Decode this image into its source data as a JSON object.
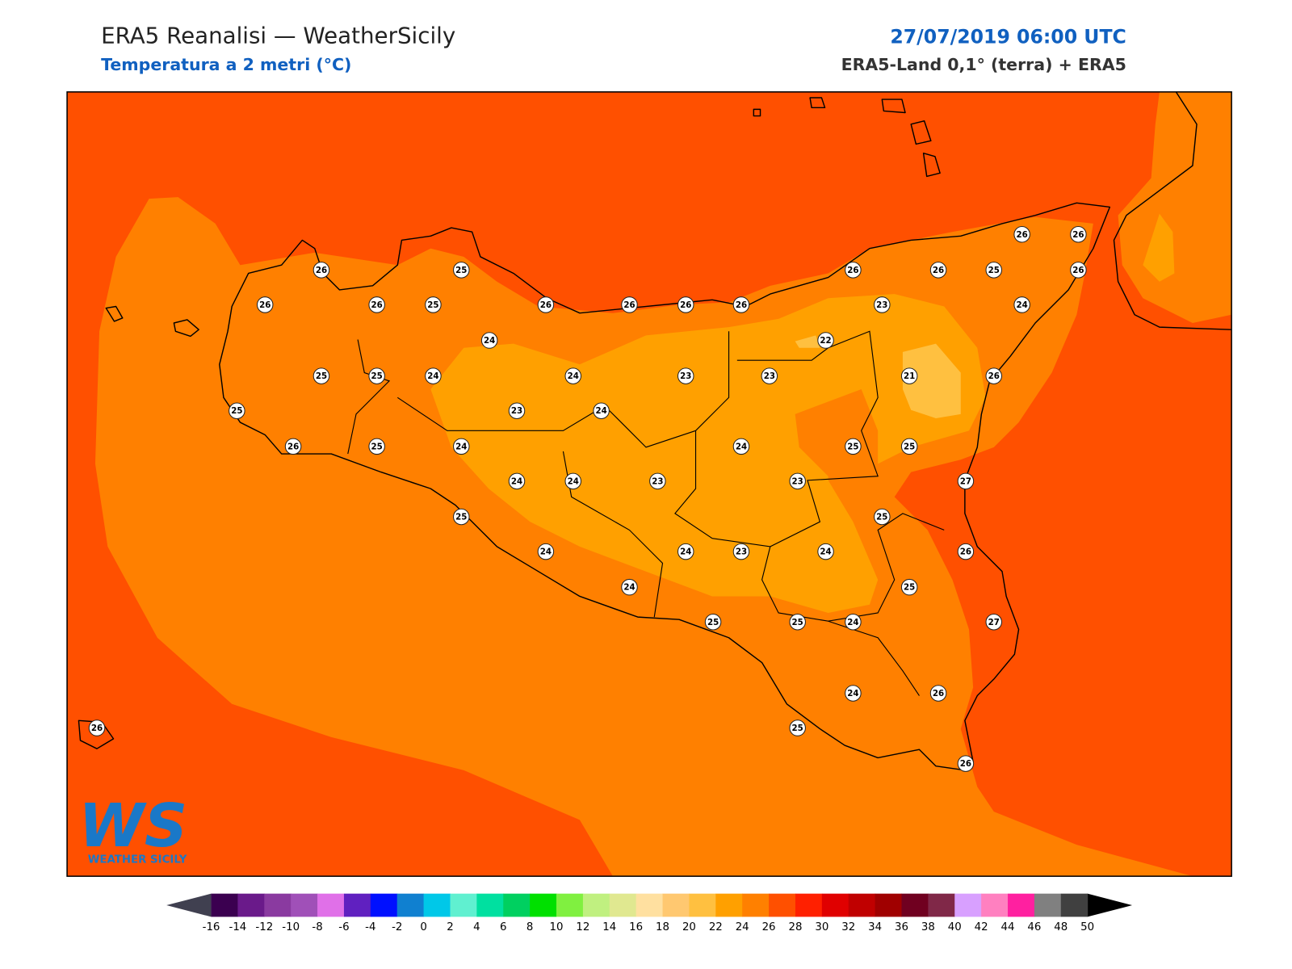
{
  "header": {
    "title": "ERA5 Reanalisi — WeatherSicily",
    "subtitle": "Temperatura a 2 metri (°C)",
    "datetime": "27/07/2019 06:00 UTC",
    "source": "ERA5-Land 0,1° (terra) + ERA5"
  },
  "stations": [
    26,
    26,
    26,
    25,
    26,
    26,
    25,
    26,
    26,
    26,
    25,
    26,
    26,
    26,
    26,
    23,
    24,
    24,
    22,
    25,
    25,
    24,
    24,
    23,
    23,
    21,
    26,
    25,
    23,
    24,
    26,
    25,
    24,
    24,
    25,
    25,
    24,
    24,
    23,
    23,
    27,
    25,
    25,
    24,
    24,
    23,
    24,
    26,
    24,
    25,
    25,
    25,
    24,
    27,
    24,
    26,
    26,
    25,
    26
  ],
  "colorbar": {
    "ticks": [
      -16,
      -14,
      -12,
      -10,
      -8,
      -6,
      -4,
      -2,
      0,
      2,
      4,
      6,
      8,
      10,
      12,
      14,
      16,
      18,
      20,
      22,
      24,
      26,
      28,
      30,
      32,
      34,
      36,
      38,
      40,
      42,
      44,
      46,
      48,
      50
    ],
    "colors": [
      "#3b0050",
      "#6a1a8a",
      "#8a3aa0",
      "#a050b8",
      "#e070e8",
      "#6020c0",
      "#0010ff",
      "#1080d0",
      "#00c8e8",
      "#60f0d0",
      "#00e0a0",
      "#00d060",
      "#00e000",
      "#80f040",
      "#c0f080",
      "#e0e890",
      "#ffe0a0",
      "#ffc870",
      "#ffc040",
      "#ffa000",
      "#ff8000",
      "#ff5000",
      "#ff2000",
      "#e00000",
      "#c00000",
      "#a00000",
      "#700020",
      "#802848",
      "#d8a0ff",
      "#ff80c0",
      "#ff20a0",
      "#808080",
      "#404040"
    ],
    "under_color": "#404050",
    "over_color": "#000000"
  },
  "logo": {
    "mark": "WS",
    "name": "WEATHER SICILY"
  }
}
